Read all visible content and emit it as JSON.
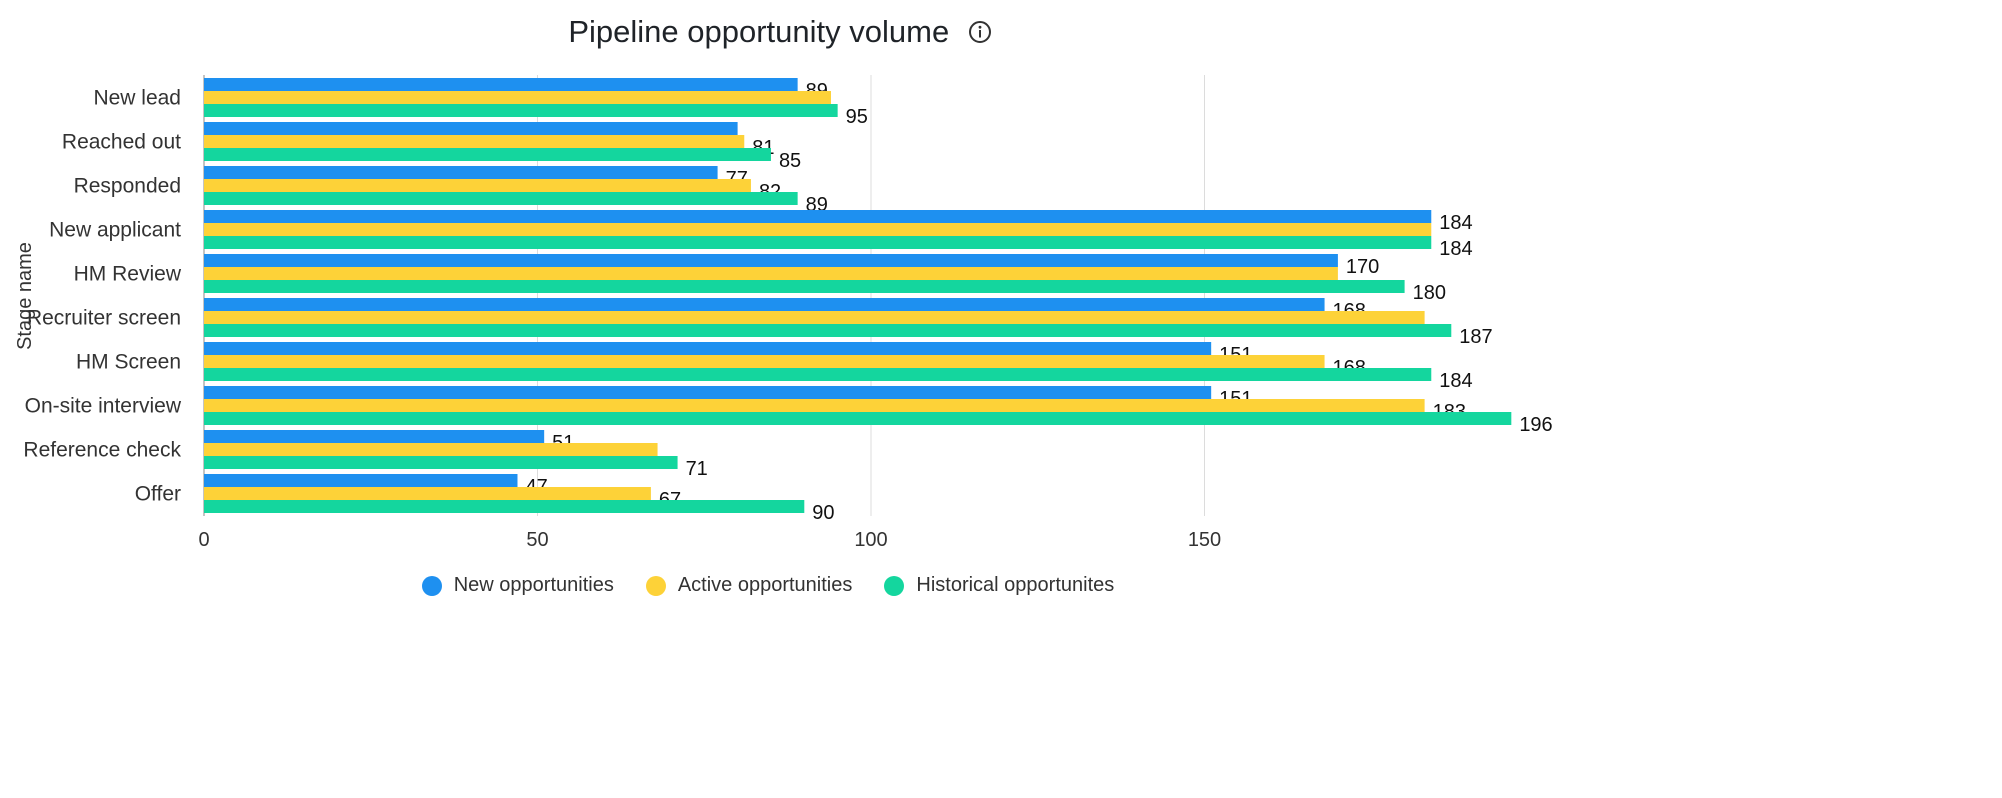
{
  "header": {
    "title": "Pipeline opportunity volume",
    "info_icon": "info-circle-icon"
  },
  "chart_data": {
    "type": "bar",
    "orientation": "horizontal",
    "title": "Pipeline opportunity volume",
    "ylabel": "Stage name",
    "xlabel": "",
    "xlim": [
      0,
      196
    ],
    "xticks": [
      0,
      50,
      100,
      150
    ],
    "grid": true,
    "legend_position": "bottom",
    "categories": [
      "New lead",
      "Reached out",
      "Responded",
      "New applicant",
      "HM Review",
      "Recruiter screen",
      "HM Screen",
      "On-site interview",
      "Reference check",
      "Offer"
    ],
    "series": [
      {
        "name": "New opportunities",
        "color": "#1e90f0",
        "values": [
          89,
          80,
          77,
          184,
          170,
          168,
          151,
          151,
          51,
          47
        ],
        "labels": [
          "89",
          "",
          "77",
          "184",
          "170",
          "168",
          "151",
          "151",
          "51",
          "47"
        ]
      },
      {
        "name": "Active opportunities",
        "color": "#fdd238",
        "values": [
          94,
          81,
          82,
          184,
          170,
          183,
          168,
          183,
          68,
          67
        ],
        "labels": [
          "",
          "81",
          "82",
          "",
          "",
          "",
          "168",
          "183",
          "",
          "67"
        ]
      },
      {
        "name": "Historical opportunites",
        "color": "#14d69e",
        "values": [
          95,
          85,
          89,
          184,
          180,
          187,
          184,
          196,
          71,
          90
        ],
        "labels": [
          "95",
          "85",
          "89",
          "184",
          "180",
          "187",
          "184",
          "196",
          "71",
          "90"
        ]
      }
    ]
  }
}
